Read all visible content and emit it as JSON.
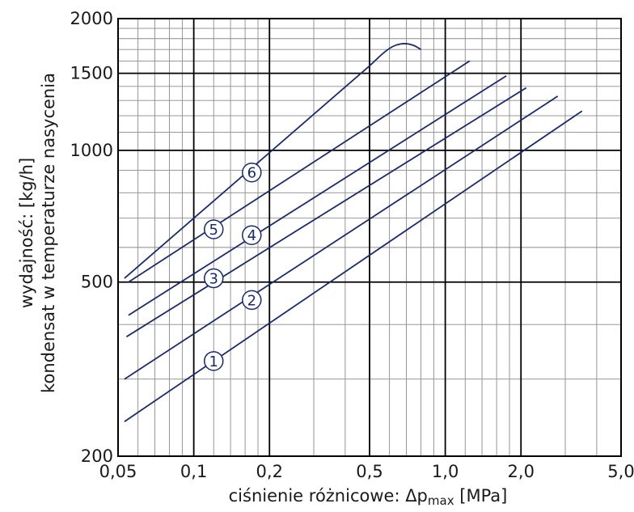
{
  "chart_data": {
    "type": "line",
    "x_scale": "log",
    "y_scale": "log",
    "xlim": [
      0.05,
      5.0
    ],
    "ylim": [
      200,
      2000
    ],
    "xlabel": {
      "main": "ciśnienie różnicowe: Δp",
      "sub": "max",
      "unit": " [MPa]"
    },
    "ylabel_lines": [
      "wydajność: [kg/h]",
      "kondensat w temperaturze nasycenia"
    ],
    "x_ticks": [
      {
        "value": 0.05,
        "label": "0,05"
      },
      {
        "value": 0.1,
        "label": "0,1"
      },
      {
        "value": 0.2,
        "label": "0,2"
      },
      {
        "value": 0.5,
        "label": "0,5"
      },
      {
        "value": 1.0,
        "label": "1,0"
      },
      {
        "value": 2.0,
        "label": "2,0"
      },
      {
        "value": 5.0,
        "label": "5,0"
      }
    ],
    "y_ticks": [
      {
        "value": 200,
        "label": "200"
      },
      {
        "value": 500,
        "label": "500"
      },
      {
        "value": 1000,
        "label": "1000"
      },
      {
        "value": 1500,
        "label": "1500"
      },
      {
        "value": 2000,
        "label": "2000"
      }
    ],
    "series": [
      {
        "name": "1",
        "color": "#1a2a6c",
        "points": [
          [
            0.053,
            240
          ],
          [
            3.5,
            1230
          ]
        ],
        "label_at": [
          0.12,
          330
        ]
      },
      {
        "name": "2",
        "color": "#1a2a6c",
        "points": [
          [
            0.053,
            300
          ],
          [
            2.8,
            1330
          ]
        ],
        "label_at": [
          0.17,
          455
        ]
      },
      {
        "name": "3",
        "color": "#1a2a6c",
        "points": [
          [
            0.054,
            375
          ],
          [
            2.1,
            1390
          ]
        ],
        "label_at": [
          0.12,
          510
        ]
      },
      {
        "name": "4",
        "color": "#1a2a6c",
        "points": [
          [
            0.055,
            420
          ],
          [
            1.75,
            1480
          ]
        ],
        "label_at": [
          0.17,
          640
        ]
      },
      {
        "name": "5",
        "color": "#1a2a6c",
        "points": [
          [
            0.055,
            500
          ],
          [
            1.25,
            1600
          ]
        ],
        "label_at": [
          0.12,
          660
        ]
      },
      {
        "name": "6",
        "color": "#1a2a6c",
        "points": [
          [
            0.053,
            510
          ],
          [
            0.5,
            1560
          ],
          [
            0.6,
            1720
          ],
          [
            0.68,
            1760
          ],
          [
            0.75,
            1740
          ],
          [
            0.8,
            1700
          ]
        ],
        "label_at": [
          0.17,
          890
        ]
      }
    ]
  }
}
